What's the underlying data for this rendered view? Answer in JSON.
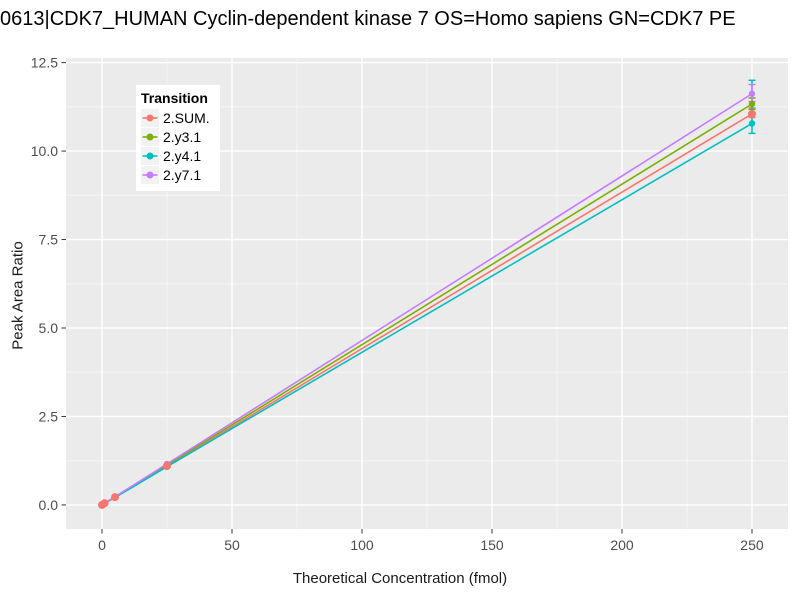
{
  "title": "0613|CDK7_HUMAN Cyclin-dependent kinase 7 OS=Homo sapiens GN=CDK7 PE",
  "chart_data": {
    "type": "line",
    "title": "0613|CDK7_HUMAN Cyclin-dependent kinase 7 OS=Homo sapiens GN=CDK7 PE",
    "xlabel": "Theoretical Concentration (fmol)",
    "ylabel": "Peak Area Ratio",
    "legend_title": "Transition",
    "legend_position": "inside-top-left",
    "grid": true,
    "x_ticks": [
      0,
      50,
      100,
      150,
      200,
      250
    ],
    "y_ticks": [
      0.0,
      2.5,
      5.0,
      7.5,
      10.0,
      12.5
    ],
    "xlim": [
      -13.85,
      263.85
    ],
    "ylim": [
      -0.68,
      12.63
    ],
    "x": [
      0,
      1,
      5,
      25,
      250
    ],
    "series": [
      {
        "name": "2.SUM.",
        "color": "#F8766D",
        "values": [
          0,
          0.05,
          0.22,
          1.1,
          11.05
        ],
        "error_bar_at_250": [
          10.95,
          11.22
        ],
        "point_radius": 4.0
      },
      {
        "name": "2.y3.1",
        "color": "#7CAE00",
        "values": [
          0,
          0.05,
          0.23,
          1.13,
          11.33
        ],
        "error_bar_at_250": [
          11.18,
          11.5
        ],
        "point_radius": 3.2
      },
      {
        "name": "2.y4.1",
        "color": "#00BFC4",
        "values": [
          0,
          0.05,
          0.21,
          1.08,
          10.78
        ],
        "error_bar_at_250": [
          10.5,
          12.0
        ],
        "point_radius": 3.2
      },
      {
        "name": "2.y7.1",
        "color": "#C77CFF",
        "values": [
          0,
          0.05,
          0.23,
          1.16,
          11.62
        ],
        "error_bar_at_250": [
          11.4,
          11.88
        ],
        "point_radius": 3.2
      }
    ],
    "colors": {
      "panel_bg": "#EBEBEB",
      "grid_major": "#FFFFFF",
      "grid_minor": "#F5F5F5",
      "tick_text": "#4D4D4D",
      "tick_mark": "#333333",
      "legend_key_bg": "#F2F2F2"
    }
  }
}
